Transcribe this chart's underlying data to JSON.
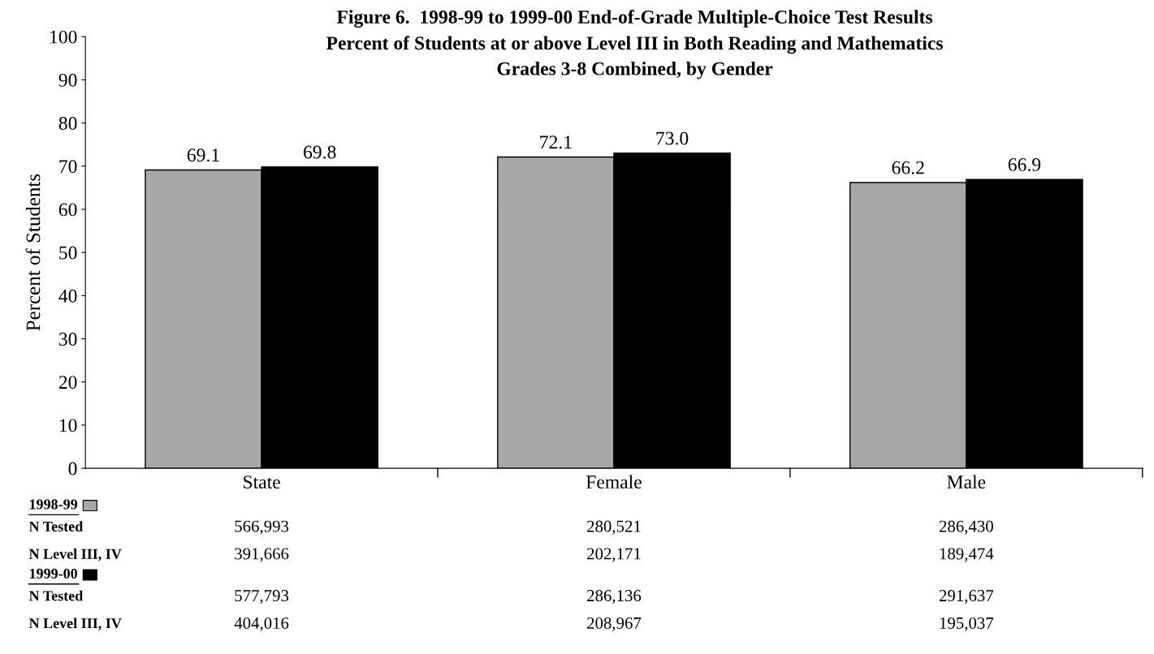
{
  "chart_data": {
    "type": "bar",
    "title": "Figure 6.  1998-99 to 1999-00 End-of-Grade Multiple-Choice Test Results",
    "subtitle": "Percent of Students at or above Level III in Both Reading and Mathematics\nGrades 3-8 Combined, by Gender",
    "ylabel": "Percent of Students",
    "categories": [
      "State",
      "Female",
      "Male"
    ],
    "series": [
      {
        "name": "1998-99",
        "color": "#a8a8a8",
        "values": [
          69.1,
          72.1,
          66.2
        ],
        "value_labels": [
          "69.1",
          "72.1",
          "66.2"
        ]
      },
      {
        "name": "1999-00",
        "color": "#000000",
        "values": [
          69.8,
          73.0,
          66.9
        ],
        "value_labels": [
          "69.8",
          "73.0",
          "66.9"
        ]
      }
    ],
    "ylim": [
      0,
      100
    ],
    "yticks": [
      0,
      10,
      20,
      30,
      40,
      50,
      60,
      70,
      80,
      90,
      100
    ],
    "grid": false,
    "legend": "bottom left",
    "annotations": [
      "N Tested",
      "566,993",
      "280,521",
      "286,430",
      "N Level III, IV",
      "391,666",
      "202,171",
      "189,474",
      "N Tested",
      "577,793",
      "286,136",
      "291,637",
      "N Level III, IV",
      "404,016",
      "208,967",
      "195,037"
    ]
  }
}
